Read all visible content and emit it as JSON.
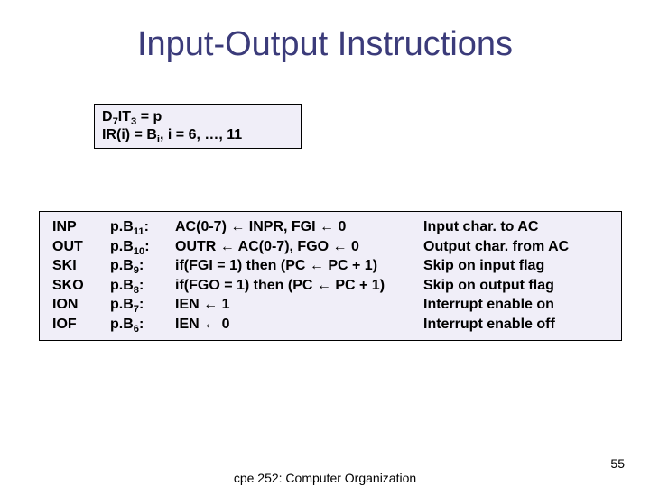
{
  "title": "Input-Output Instructions",
  "cond": {
    "line1_a": "D",
    "line1_sub1": "7",
    "line1_b": "IT",
    "line1_sub2": "3",
    "line1_c": " = p",
    "line2_a": "IR(i) = B",
    "line2_sub": "i",
    "line2_b": ", i = 6, …, 11"
  },
  "rows": [
    {
      "mn": "INP",
      "pc": "p.B",
      "sub": "11",
      "colon": ":",
      "op_a": "AC(0-7) ",
      "arr1": "←",
      "op_b": " INPR, FGI ",
      "arr2": "←",
      "op_c": " 0",
      "desc": "Input char. to AC"
    },
    {
      "mn": "OUT",
      "pc": "p.B",
      "sub": "10",
      "colon": ":",
      "op_a": "OUTR ",
      "arr1": "←",
      "op_b": " AC(0-7), FGO ",
      "arr2": "←",
      "op_c": " 0",
      "desc": "Output char. from AC"
    },
    {
      "mn": "SKI",
      "pc": "p.B",
      "sub": "9",
      "colon": ":",
      "op_a": "if(FGI = 1) then (PC ",
      "arr1": "←",
      "op_b": " PC + 1)",
      "arr2": "",
      "op_c": "",
      "desc": "Skip on input flag"
    },
    {
      "mn": "SKO",
      "pc": "p.B",
      "sub": "8",
      "colon": ":",
      "op_a": "if(FGO = 1) then (PC ",
      "arr1": "←",
      "op_b": " PC + 1)",
      "arr2": "",
      "op_c": "",
      "desc": "Skip on output flag"
    },
    {
      "mn": "ION",
      "pc": "p.B",
      "sub": "7",
      "colon": ":",
      "op_a": "IEN ",
      "arr1": "←",
      "op_b": " 1",
      "arr2": "",
      "op_c": "",
      "desc": "Interrupt enable on"
    },
    {
      "mn": "IOF",
      "pc": "p.B",
      "sub": "6",
      "colon": ":",
      "op_a": "IEN ",
      "arr1": "←",
      "op_b": " 0",
      "arr2": "",
      "op_c": "",
      "desc": "Interrupt enable off"
    }
  ],
  "footer": "cpe 252: Computer Organization",
  "page": "55",
  "colors": {
    "title": "#3b3b7a",
    "box_bg": "#f0eef8",
    "text": "#000000",
    "page_bg": "#ffffff"
  }
}
